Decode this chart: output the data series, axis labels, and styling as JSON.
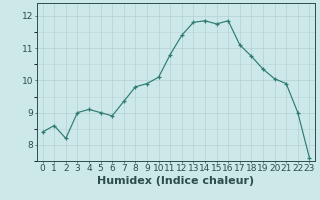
{
  "x": [
    0,
    1,
    2,
    3,
    4,
    5,
    6,
    7,
    8,
    9,
    10,
    11,
    12,
    13,
    14,
    15,
    16,
    17,
    18,
    19,
    20,
    21,
    22,
    23
  ],
  "y": [
    8.4,
    8.6,
    8.2,
    9.0,
    9.1,
    9.0,
    8.9,
    9.35,
    9.8,
    9.9,
    10.1,
    10.8,
    11.4,
    11.8,
    11.85,
    11.75,
    11.85,
    11.1,
    10.75,
    10.35,
    10.05,
    9.9,
    9.0,
    7.6
  ],
  "line_color": "#2e7d70",
  "marker": "+",
  "marker_color": "#2e7d70",
  "bg_color": "#cce8e8",
  "grid_major_color": "#b8d4d4",
  "grid_minor_color": "#cce0e0",
  "xlabel": "Humidex (Indice chaleur)",
  "xlim": [
    -0.5,
    23.5
  ],
  "ylim": [
    7.5,
    12.4
  ],
  "yticks": [
    8,
    9,
    10,
    11,
    12
  ],
  "font_color": "#2e4d4d",
  "tick_fontsize": 6.5,
  "xlabel_fontsize": 8
}
